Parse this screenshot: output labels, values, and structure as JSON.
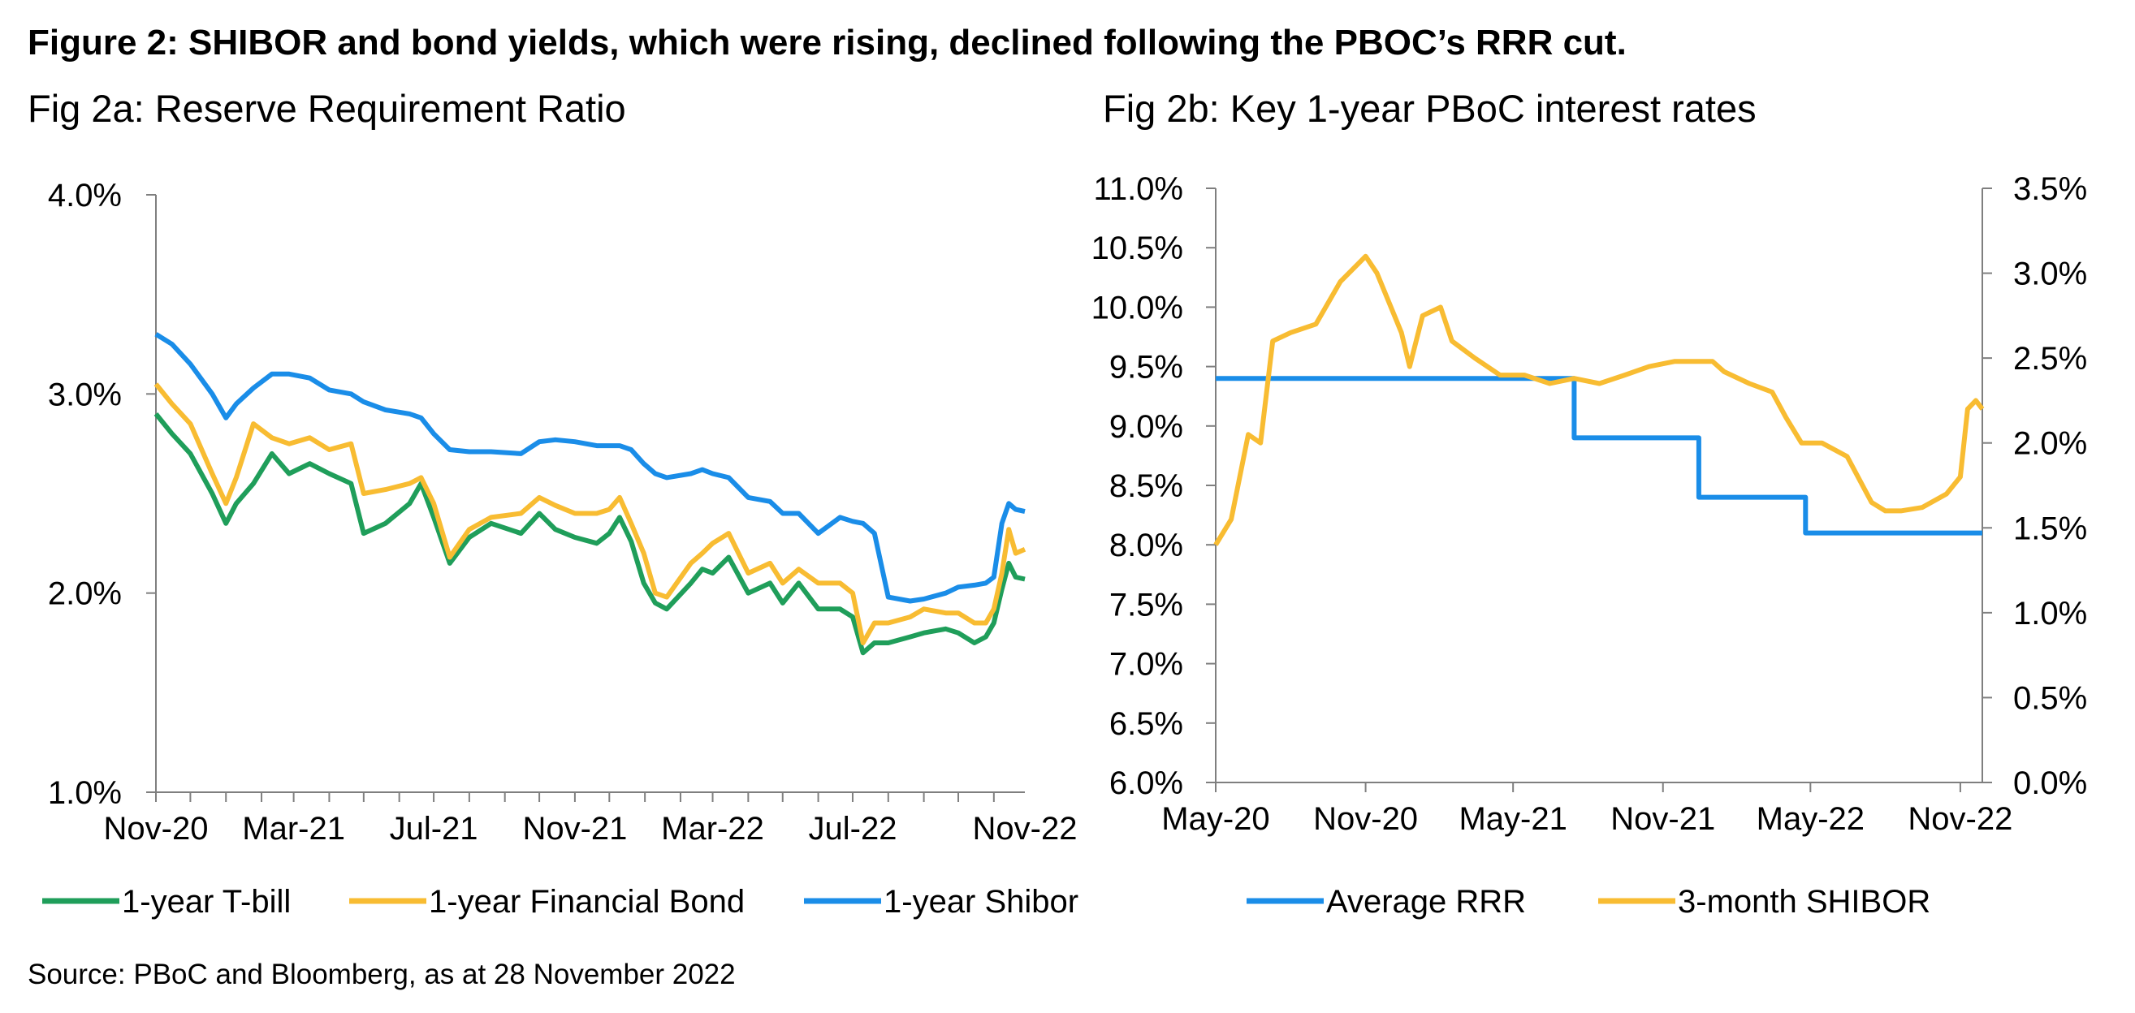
{
  "figure_title": "Figure 2: SHIBOR and bond yields, which were rising, declined following the PBOC’s RRR cut.",
  "source": "Source: PBoC and Bloomberg, as at 28 November 2022",
  "colors": {
    "green": "#1f9e5a",
    "yellow": "#f8bc32",
    "blue": "#1a8de8"
  },
  "chart_data": [
    {
      "type": "line",
      "title": "Fig 2a: Reserve Requirement Ratio",
      "x_tick_labels": [
        "Nov-20",
        "Mar-21",
        "Jul-21",
        "Nov-21",
        "Mar-22",
        "Jul-22",
        "Nov-22"
      ],
      "y_tick_labels": [
        "1.0%",
        "2.0%",
        "3.0%",
        "4.0%"
      ],
      "ylim": [
        1.0,
        4.0
      ],
      "legend_position": "bottom",
      "series": [
        {
          "name": "1-year T-bill",
          "color": "#1f9e5a",
          "x": [
            "2020-11-01",
            "2020-11-15",
            "2020-12-01",
            "2020-12-20",
            "2021-01-01",
            "2021-01-10",
            "2021-01-25",
            "2021-02-10",
            "2021-02-25",
            "2021-03-15",
            "2021-04-01",
            "2021-04-20",
            "2021-05-01",
            "2021-05-20",
            "2021-06-10",
            "2021-06-20",
            "2021-07-01",
            "2021-07-15",
            "2021-08-01",
            "2021-08-20",
            "2021-09-15",
            "2021-10-01",
            "2021-10-15",
            "2021-11-01",
            "2021-11-20",
            "2021-12-01",
            "2021-12-10",
            "2021-12-20",
            "2021-12-31",
            "2022-01-10",
            "2022-01-20",
            "2022-02-10",
            "2022-02-20",
            "2022-03-01",
            "2022-03-15",
            "2022-04-01",
            "2022-04-20",
            "2022-05-01",
            "2022-05-15",
            "2022-06-01",
            "2022-06-20",
            "2022-07-01",
            "2022-07-10",
            "2022-07-20",
            "2022-08-01",
            "2022-08-20",
            "2022-09-01",
            "2022-09-20",
            "2022-10-01",
            "2022-10-15",
            "2022-10-25",
            "2022-11-01",
            "2022-11-08",
            "2022-11-14",
            "2022-11-20",
            "2022-11-28"
          ],
          "y": [
            2.9,
            2.8,
            2.7,
            2.5,
            2.35,
            2.45,
            2.55,
            2.7,
            2.6,
            2.65,
            2.6,
            2.55,
            2.3,
            2.35,
            2.45,
            2.55,
            2.38,
            2.15,
            2.28,
            2.35,
            2.3,
            2.4,
            2.32,
            2.28,
            2.25,
            2.3,
            2.38,
            2.26,
            2.05,
            1.95,
            1.92,
            2.05,
            2.12,
            2.1,
            2.18,
            2.0,
            2.05,
            1.95,
            2.05,
            1.92,
            1.92,
            1.88,
            1.7,
            1.75,
            1.75,
            1.78,
            1.8,
            1.82,
            1.8,
            1.75,
            1.78,
            1.85,
            2.02,
            2.15,
            2.08,
            2.07
          ]
        },
        {
          "name": "1-year Financial Bond",
          "color": "#f8bc32",
          "x": [
            "2020-11-01",
            "2020-11-15",
            "2020-12-01",
            "2020-12-20",
            "2021-01-01",
            "2021-01-10",
            "2021-01-25",
            "2021-02-10",
            "2021-02-25",
            "2021-03-15",
            "2021-04-01",
            "2021-04-20",
            "2021-05-01",
            "2021-05-20",
            "2021-06-10",
            "2021-06-20",
            "2021-07-01",
            "2021-07-15",
            "2021-08-01",
            "2021-08-20",
            "2021-09-15",
            "2021-10-01",
            "2021-10-15",
            "2021-11-01",
            "2021-11-20",
            "2021-12-01",
            "2021-12-10",
            "2021-12-20",
            "2021-12-31",
            "2022-01-10",
            "2022-01-20",
            "2022-02-10",
            "2022-02-20",
            "2022-03-01",
            "2022-03-15",
            "2022-04-01",
            "2022-04-20",
            "2022-05-01",
            "2022-05-15",
            "2022-06-01",
            "2022-06-20",
            "2022-07-01",
            "2022-07-10",
            "2022-07-20",
            "2022-08-01",
            "2022-08-20",
            "2022-09-01",
            "2022-09-20",
            "2022-10-01",
            "2022-10-15",
            "2022-10-25",
            "2022-11-01",
            "2022-11-08",
            "2022-11-14",
            "2022-11-20",
            "2022-11-28"
          ],
          "y": [
            3.05,
            2.95,
            2.85,
            2.6,
            2.45,
            2.58,
            2.85,
            2.78,
            2.75,
            2.78,
            2.72,
            2.75,
            2.5,
            2.52,
            2.55,
            2.58,
            2.45,
            2.18,
            2.32,
            2.38,
            2.4,
            2.48,
            2.44,
            2.4,
            2.4,
            2.42,
            2.48,
            2.35,
            2.2,
            2.0,
            1.98,
            2.15,
            2.2,
            2.25,
            2.3,
            2.1,
            2.15,
            2.05,
            2.12,
            2.05,
            2.05,
            2.0,
            1.75,
            1.85,
            1.85,
            1.88,
            1.92,
            1.9,
            1.9,
            1.85,
            1.85,
            1.92,
            2.1,
            2.32,
            2.2,
            2.22
          ]
        },
        {
          "name": "1-year Shibor",
          "color": "#1a8de8",
          "x": [
            "2020-11-01",
            "2020-11-15",
            "2020-12-01",
            "2020-12-20",
            "2021-01-01",
            "2021-01-10",
            "2021-01-25",
            "2021-02-10",
            "2021-02-25",
            "2021-03-15",
            "2021-04-01",
            "2021-04-20",
            "2021-05-01",
            "2021-05-20",
            "2021-06-10",
            "2021-06-20",
            "2021-07-01",
            "2021-07-15",
            "2021-08-01",
            "2021-08-20",
            "2021-09-15",
            "2021-10-01",
            "2021-10-15",
            "2021-11-01",
            "2021-11-20",
            "2021-12-01",
            "2021-12-10",
            "2021-12-20",
            "2021-12-31",
            "2022-01-10",
            "2022-01-20",
            "2022-02-10",
            "2022-02-20",
            "2022-03-01",
            "2022-03-15",
            "2022-04-01",
            "2022-04-20",
            "2022-05-01",
            "2022-05-15",
            "2022-06-01",
            "2022-06-20",
            "2022-07-01",
            "2022-07-10",
            "2022-07-20",
            "2022-08-01",
            "2022-08-20",
            "2022-09-01",
            "2022-09-20",
            "2022-10-01",
            "2022-10-15",
            "2022-10-25",
            "2022-11-01",
            "2022-11-08",
            "2022-11-14",
            "2022-11-20",
            "2022-11-28"
          ],
          "y": [
            3.3,
            3.25,
            3.15,
            3.0,
            2.88,
            2.95,
            3.03,
            3.1,
            3.1,
            3.08,
            3.02,
            3.0,
            2.96,
            2.92,
            2.9,
            2.88,
            2.8,
            2.72,
            2.71,
            2.71,
            2.7,
            2.76,
            2.77,
            2.76,
            2.74,
            2.74,
            2.74,
            2.72,
            2.65,
            2.6,
            2.58,
            2.6,
            2.62,
            2.6,
            2.58,
            2.48,
            2.46,
            2.4,
            2.4,
            2.3,
            2.38,
            2.36,
            2.35,
            2.3,
            1.98,
            1.96,
            1.97,
            2.0,
            2.03,
            2.04,
            2.05,
            2.08,
            2.35,
            2.45,
            2.42,
            2.41
          ]
        }
      ]
    },
    {
      "type": "line",
      "title": "Fig 2b: Key 1-year PBoC interest rates",
      "x_tick_labels": [
        "May-20",
        "Nov-20",
        "May-21",
        "Nov-21",
        "May-22",
        "Nov-22"
      ],
      "y_left_tick_labels": [
        "6.0%",
        "6.5%",
        "7.0%",
        "7.5%",
        "8.0%",
        "8.5%",
        "9.0%",
        "9.5%",
        "10.0%",
        "10.5%",
        "11.0%"
      ],
      "y_right_tick_labels": [
        "0.0%",
        "0.5%",
        "1.0%",
        "1.5%",
        "2.0%",
        "2.5%",
        "3.0%",
        "3.5%"
      ],
      "ylim_left": [
        6.0,
        11.0
      ],
      "ylim_right": [
        0.0,
        3.5
      ],
      "legend_position": "bottom",
      "series": [
        {
          "name": "Average RRR",
          "color": "#1a8de8",
          "axis": "left",
          "step": true,
          "x": [
            "2020-05-01",
            "2021-07-15",
            "2021-12-15",
            "2022-04-25",
            "2022-11-28"
          ],
          "y": [
            9.4,
            8.9,
            8.4,
            8.1,
            8.1
          ]
        },
        {
          "name": "3-month SHIBOR",
          "color": "#f8bc32",
          "axis": "right",
          "x": [
            "2020-05-01",
            "2020-05-20",
            "2020-06-10",
            "2020-06-25",
            "2020-07-10",
            "2020-08-01",
            "2020-09-01",
            "2020-10-01",
            "2020-11-01",
            "2020-11-15",
            "2020-12-15",
            "2020-12-25",
            "2021-01-10",
            "2021-02-01",
            "2021-02-15",
            "2021-03-15",
            "2021-04-15",
            "2021-05-15",
            "2021-06-15",
            "2021-07-15",
            "2021-08-15",
            "2021-09-15",
            "2021-10-15",
            "2021-11-15",
            "2021-12-15",
            "2022-01-01",
            "2022-01-15",
            "2022-02-15",
            "2022-03-15",
            "2022-04-01",
            "2022-04-20",
            "2022-05-15",
            "2022-06-15",
            "2022-07-15",
            "2022-08-01",
            "2022-08-20",
            "2022-09-15",
            "2022-10-15",
            "2022-11-01",
            "2022-11-10",
            "2022-11-20",
            "2022-11-28"
          ],
          "y": [
            1.4,
            1.55,
            2.05,
            2.0,
            2.6,
            2.65,
            2.7,
            2.95,
            3.1,
            3.0,
            2.65,
            2.45,
            2.75,
            2.8,
            2.6,
            2.5,
            2.4,
            2.4,
            2.35,
            2.38,
            2.35,
            2.4,
            2.45,
            2.48,
            2.48,
            2.48,
            2.42,
            2.35,
            2.3,
            2.15,
            2.0,
            2.0,
            1.92,
            1.65,
            1.6,
            1.6,
            1.62,
            1.7,
            1.8,
            2.2,
            2.25,
            2.2
          ]
        }
      ]
    }
  ]
}
